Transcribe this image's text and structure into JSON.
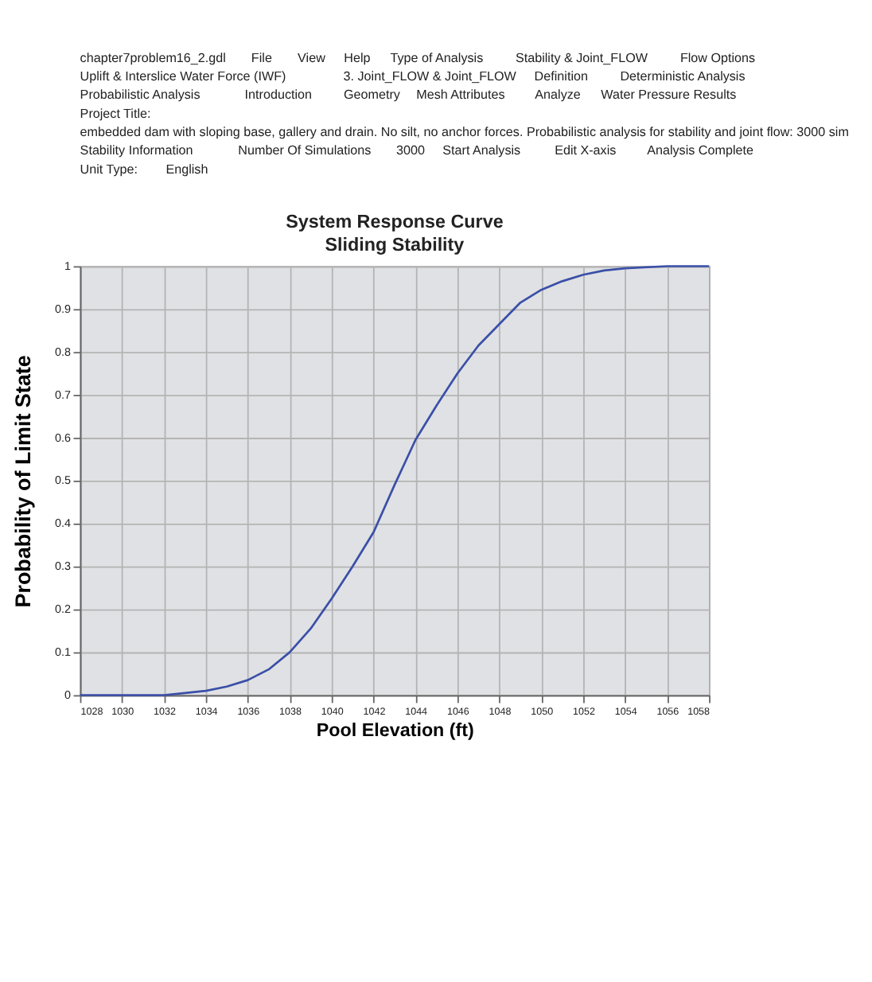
{
  "chart_data": {
    "type": "line",
    "title": "System Response Curve",
    "subtitle": "Sliding Stability",
    "xlabel": "Pool Elevation (ft)",
    "ylabel": "Probability of Limit State",
    "x": [
      1028,
      1030,
      1032,
      1033,
      1034,
      1035,
      1036,
      1037,
      1038,
      1039,
      1040,
      1041,
      1042,
      1043,
      1044,
      1045,
      1046,
      1047,
      1048,
      1049,
      1050,
      1051,
      1052,
      1053,
      1054,
      1056,
      1058
    ],
    "series": [
      {
        "color": "#3a4fa8",
        "values": [
          0,
          0,
          0,
          0.005,
          0.01,
          0.02,
          0.035,
          0.06,
          0.1,
          0.155,
          0.225,
          0.3,
          0.38,
          0.49,
          0.595,
          0.675,
          0.75,
          0.815,
          0.865,
          0.915,
          0.945,
          0.965,
          0.98,
          0.99,
          0.995,
          1,
          1
        ]
      }
    ],
    "xlim": [
      1028,
      1058
    ],
    "xticks": [
      1028,
      1030,
      1032,
      1034,
      1036,
      1038,
      1040,
      1042,
      1044,
      1046,
      1048,
      1050,
      1052,
      1054,
      1056,
      1058
    ],
    "ylim": [
      0,
      1
    ],
    "yticks": [
      0,
      0.1,
      0.2,
      0.3,
      0.4,
      0.5,
      0.6,
      0.7,
      0.8,
      0.9,
      1
    ],
    "grid": true,
    "legend": false,
    "marker": "none",
    "line_style": "solid",
    "annotations": [
      "chapter7problem16_2.gdl",
      "File",
      "View",
      "Help",
      "Type of Analysis",
      "Stability & Joint_FLOW",
      "Flow Options",
      "Uplift & Interslice Water Force (IWF)",
      "3. Joint_FLOW & Joint_FLOW",
      "Definition",
      "Deterministic Analysis",
      "Probabilistic Analysis",
      "Introduction",
      "Geometry",
      "Mesh Attributes",
      "Analyze",
      "Water Pressure Results",
      "Project Title:",
      "embedded dam with sloping base, gallery and drain.  No silt, no anchor forces.  Probabilistic analysis for stability and joint flow:  3000 sim",
      "Stability Information",
      "Number Of Simulations",
      "3000",
      "Start Analysis",
      "Edit X-axis",
      "Analysis Complete",
      "Unit Type:",
      "English"
    ]
  }
}
